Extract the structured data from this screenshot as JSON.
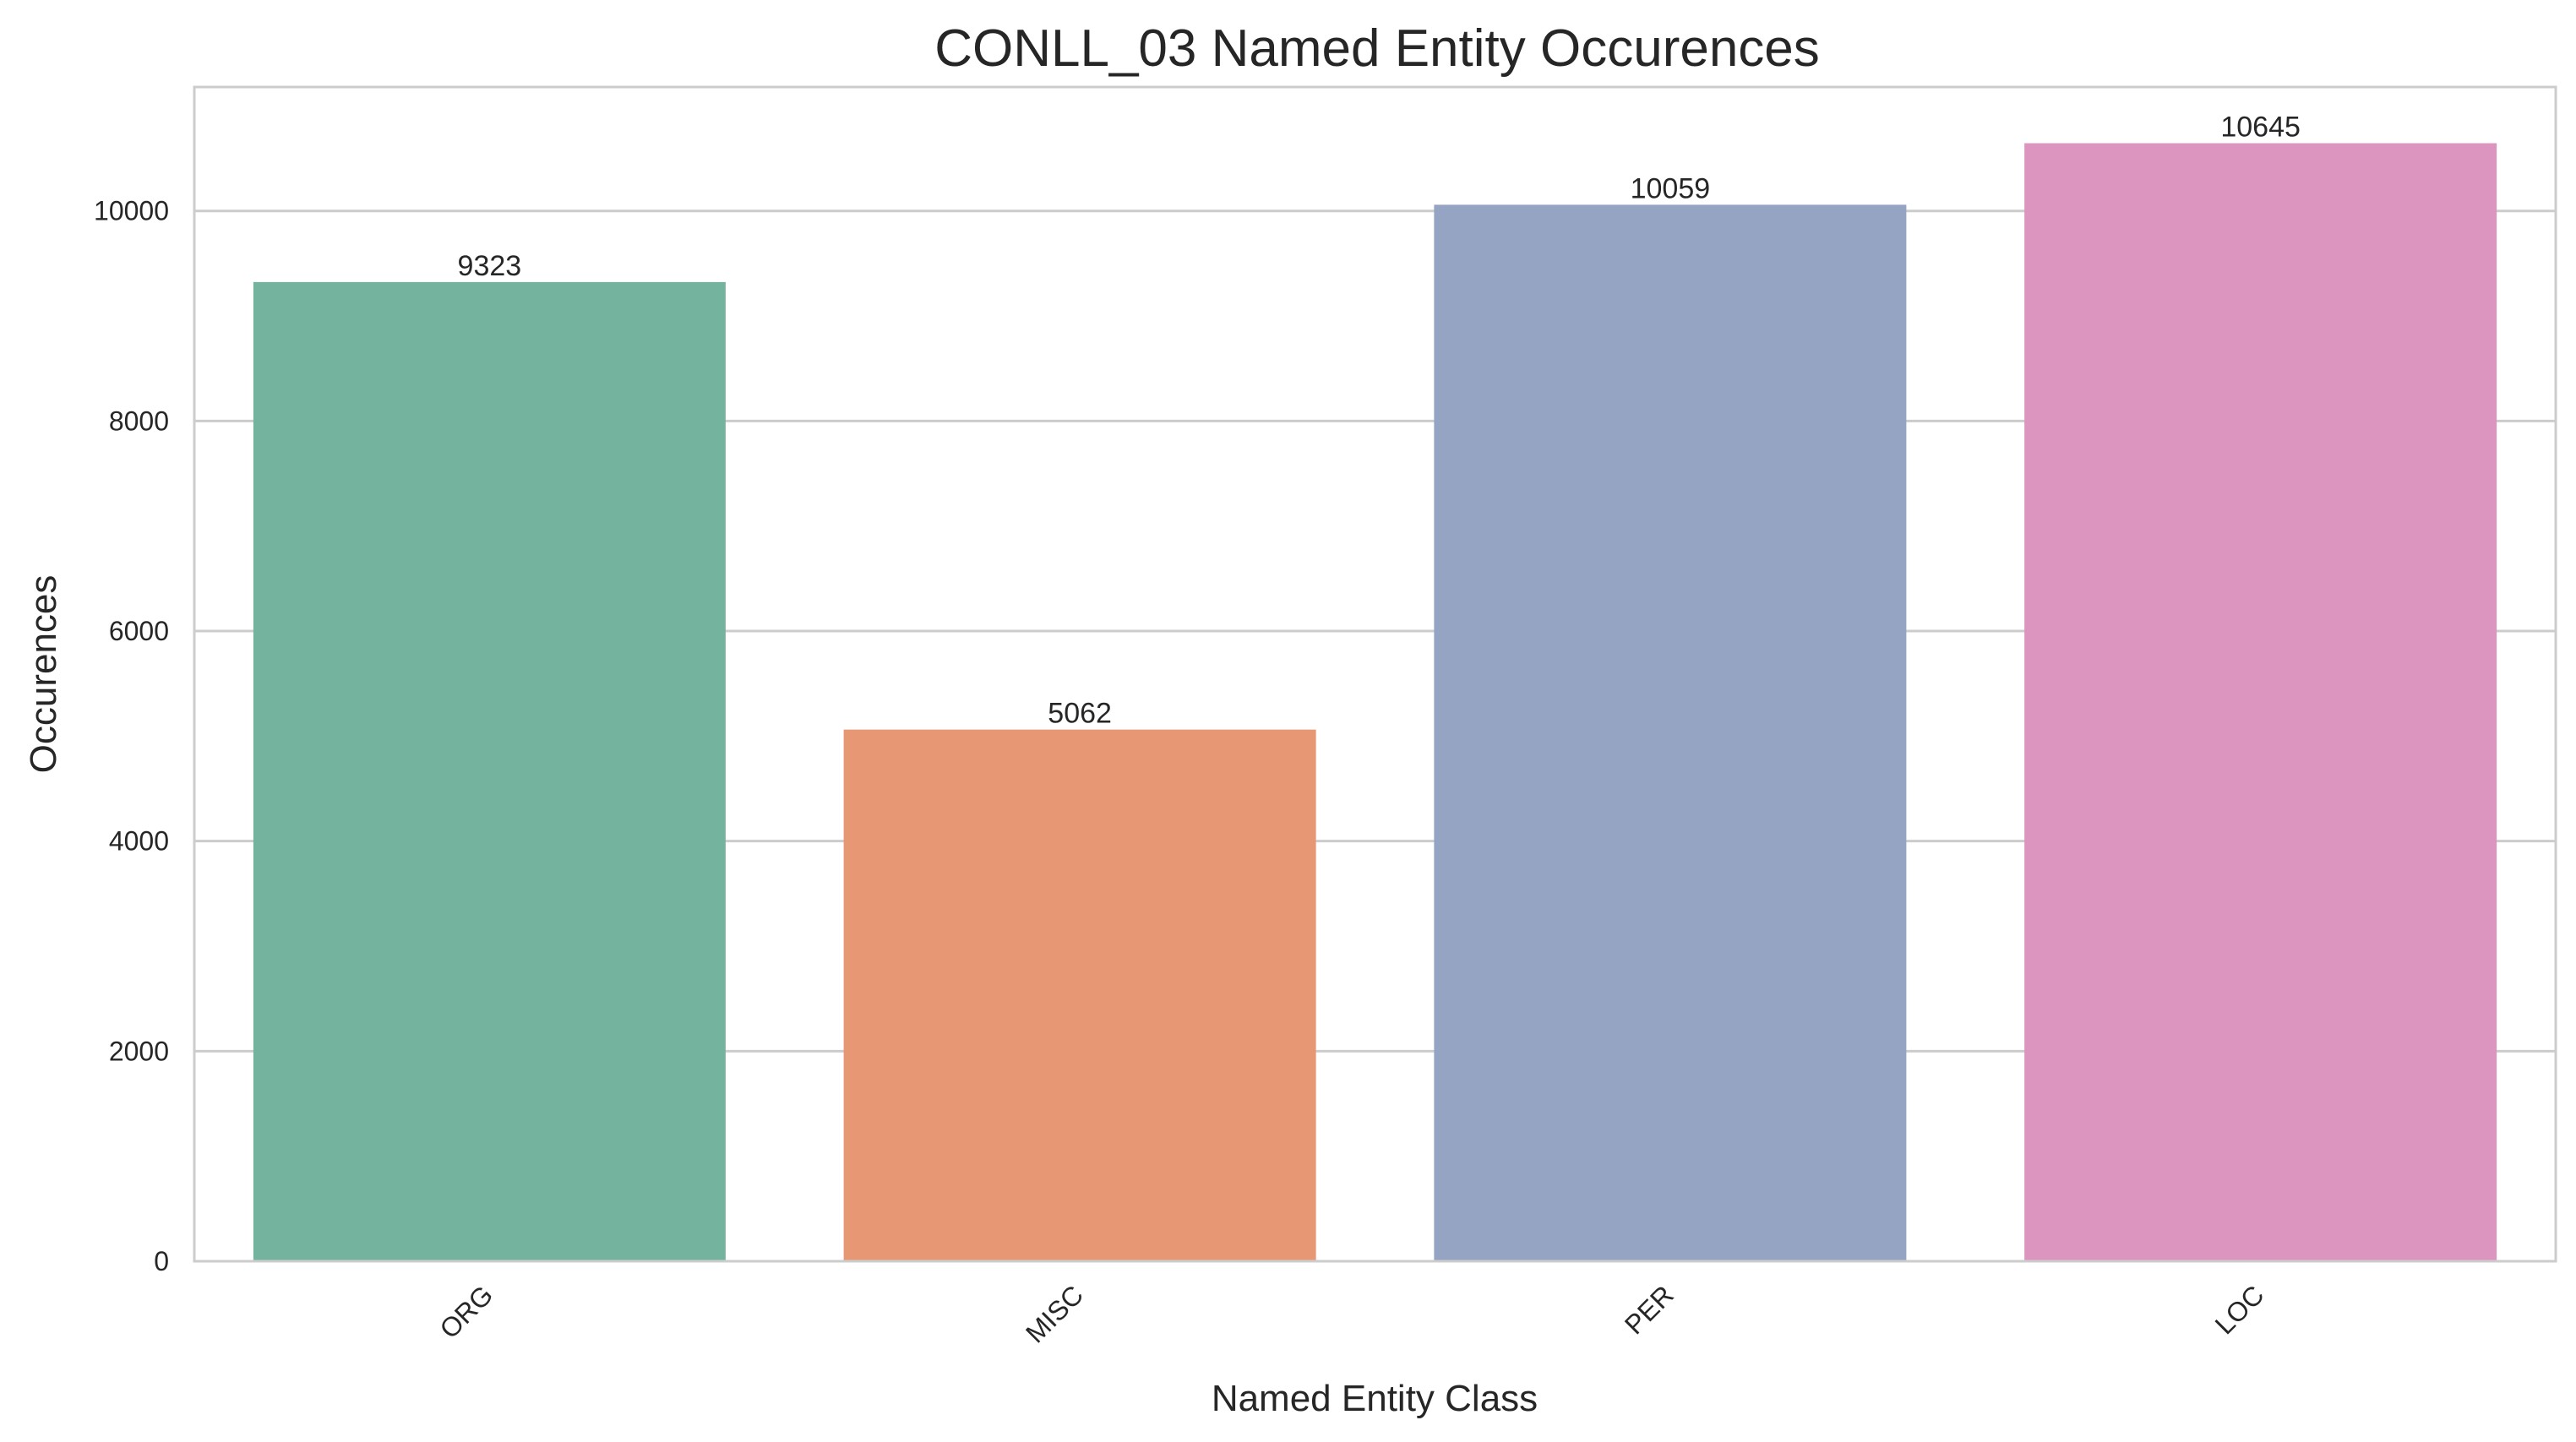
{
  "chart_data": {
    "type": "bar",
    "title": "CONLL_03 Named Entity Occurences",
    "xlabel": "Named Entity Class",
    "ylabel": "Occurences",
    "categories": [
      "ORG",
      "MISC",
      "PER",
      "LOC"
    ],
    "values": [
      9323,
      5062,
      10059,
      10645
    ],
    "data_labels": [
      "9323",
      "5062",
      "10059",
      "10645"
    ],
    "colors": [
      "#74b49f",
      "#e89774",
      "#95a4c3",
      "#dc95bf"
    ],
    "ylim": [
      0,
      11180
    ],
    "yticks": [
      0,
      2000,
      4000,
      6000,
      8000,
      10000
    ],
    "ytick_labels": [
      "0",
      "2000",
      "4000",
      "6000",
      "8000",
      "10000"
    ],
    "grid": "horizontal",
    "x_tick_rotation": "45°"
  }
}
